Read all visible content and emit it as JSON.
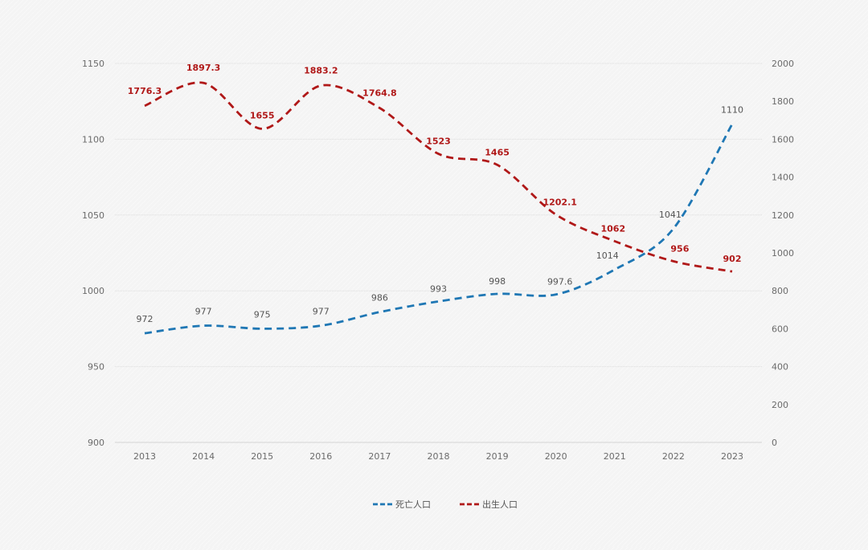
{
  "chart_data": {
    "type": "line",
    "title": "",
    "xlabel": "",
    "ylabel": "",
    "categories": [
      "2013",
      "2014",
      "2015",
      "2016",
      "2017",
      "2018",
      "2019",
      "2020",
      "2021",
      "2022",
      "2023"
    ],
    "series": [
      {
        "name": "死亡人口",
        "axis": "left",
        "color": "#1f77b4",
        "values": [
          972,
          977,
          975,
          977,
          986,
          993,
          998,
          997.6,
          1014,
          1041,
          1110
        ],
        "labels": [
          "972",
          "977",
          "975",
          "977",
          "986",
          "993",
          "998",
          "997.6",
          "1014",
          "1041",
          "1110"
        ]
      },
      {
        "name": "出生人口",
        "axis": "right",
        "color": "#b01818",
        "values": [
          1776.3,
          1897.3,
          1655,
          1883.2,
          1764.8,
          1523,
          1465,
          1202.1,
          1062,
          956,
          902
        ],
        "labels": [
          "1776.3",
          "1897.3",
          "1655",
          "1883.2",
          "1764.8",
          "1523",
          "1465",
          "1202.1",
          "1062",
          "956",
          "902"
        ]
      }
    ],
    "y_left": {
      "ylim": [
        900,
        1150
      ],
      "ticks": [
        "900",
        "950",
        "1000",
        "1050",
        "1100",
        "1150"
      ]
    },
    "y_right": {
      "ylim": [
        0,
        2000
      ],
      "ticks": [
        "0",
        "200",
        "400",
        "600",
        "800",
        "1000",
        "1200",
        "1400",
        "1600",
        "1800",
        "2000"
      ]
    },
    "grid": true,
    "legend": "bottom-center"
  }
}
